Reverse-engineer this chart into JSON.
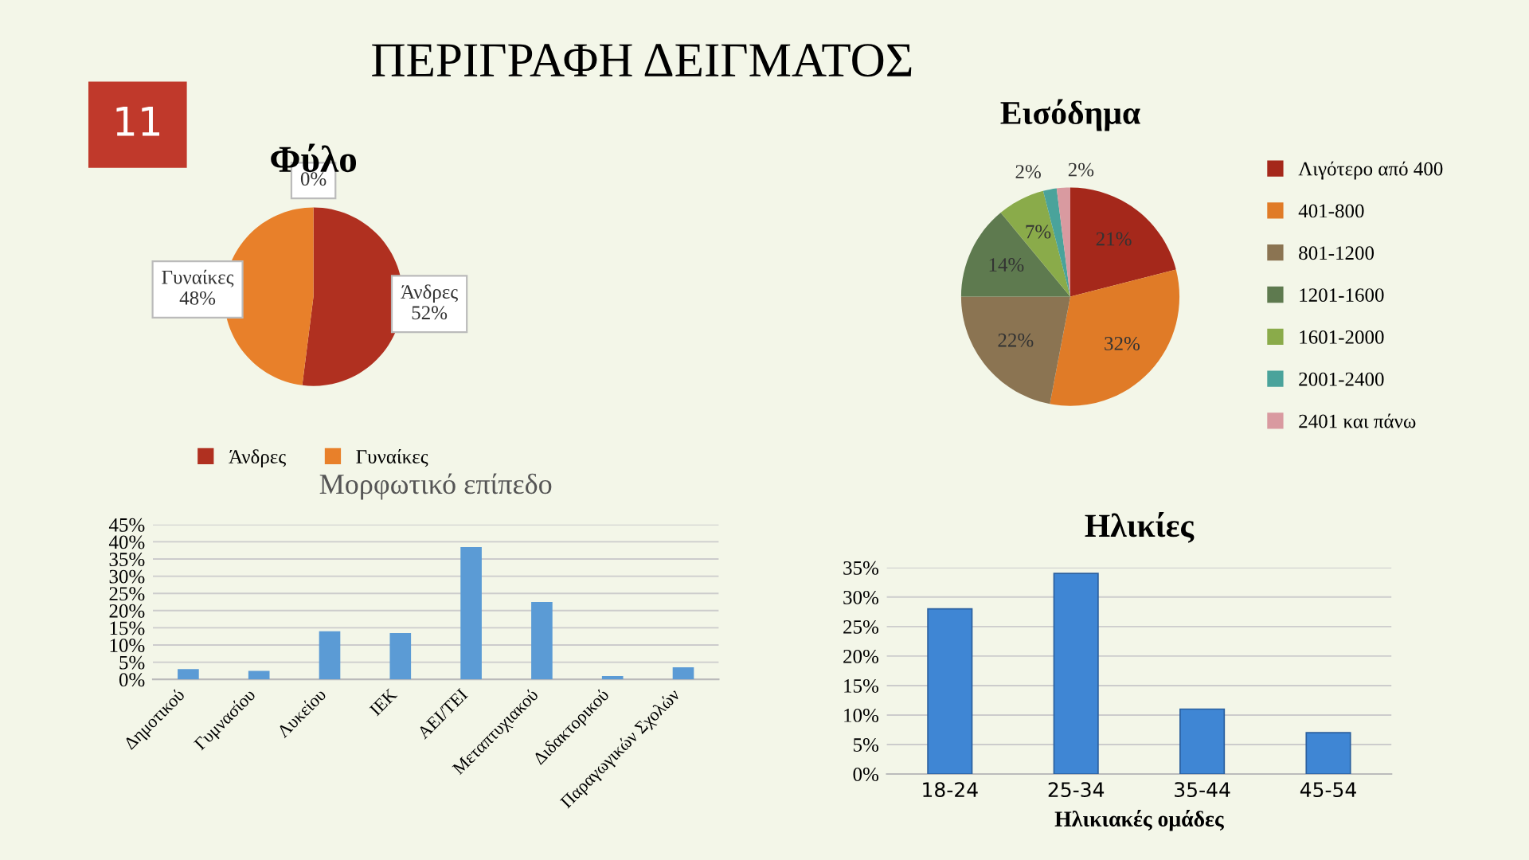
{
  "chart_data": [
    {
      "type": "pie",
      "title": "Φύλο",
      "categories": [
        "Άνδρες",
        "Γυναίκες",
        null
      ],
      "values": [
        52,
        48,
        0
      ],
      "colors": [
        "#b03020",
        "#e8802a",
        "#8b7452"
      ],
      "value_labels": [
        "Άνδρες\n52%",
        "Γυναίκες\n48%",
        "0%"
      ],
      "legend": "bottom",
      "annotations": [
        "ΠΕΡΙΓΡΑΦΗ ΔΕΙΓΜΑΤΟΣ",
        "11"
      ]
    },
    {
      "type": "pie",
      "title": "Εισόδημα",
      "categories": [
        "Λιγότερο από 400",
        "401-800",
        "801-1200",
        "1201-1600",
        "1601-2000",
        "2001-2400",
        "2401 και πάνω"
      ],
      "values": [
        21,
        32,
        22,
        14,
        7,
        2,
        2
      ],
      "colors": [
        "#a5281b",
        "#e07b27",
        "#8b7452",
        "#5e7a4f",
        "#8aab4a",
        "#4aa39b",
        "#d99aa0"
      ],
      "value_labels": [
        "21%",
        "32%",
        "22%",
        "14%",
        "7%",
        "2%",
        "2%"
      ],
      "legend": "right"
    },
    {
      "type": "bar",
      "title": "Μορφωτικό επίπεδο",
      "categories": [
        "Δημοτικού",
        "Γυμνασίου",
        "Λυκείου",
        "ΙΕΚ",
        "ΑΕΙ/ΤΕΙ",
        "Μεταπτυχιακού",
        "Διδακτορικού",
        "Παραγωγικών Σχολών"
      ],
      "values": [
        3,
        2.5,
        14,
        13.5,
        38.5,
        22.5,
        1,
        3.5
      ],
      "color": "#5b9bd5",
      "ylim": [
        0,
        45
      ],
      "yticks": [
        {
          "value": 0,
          "label": "0%"
        },
        {
          "value": 5,
          "label": "5%"
        },
        {
          "value": 10,
          "label": "10%"
        },
        {
          "value": 15,
          "label": "15%"
        },
        {
          "value": 20,
          "label": "20%"
        },
        {
          "value": 25,
          "label": "25%"
        },
        {
          "value": 30,
          "label": "30%"
        },
        {
          "value": 35,
          "label": "35%"
        },
        {
          "value": 40,
          "label": "40%"
        },
        {
          "value": 45,
          "label": "45%"
        }
      ],
      "grid": "y"
    },
    {
      "type": "bar",
      "title": "Ηλικίες",
      "xlabel": "Ηλικιακές ομάδες",
      "categories": [
        "18-24",
        "25-34",
        "35-44",
        "45-54"
      ],
      "values": [
        28,
        34,
        11,
        7
      ],
      "color": "#3f86d4",
      "ylim": [
        0,
        35
      ],
      "yticks": [
        {
          "value": 0,
          "label": "0%"
        },
        {
          "value": 5,
          "label": "5%"
        },
        {
          "value": 10,
          "label": "10%"
        },
        {
          "value": 15,
          "label": "15%"
        },
        {
          "value": 20,
          "label": "20%"
        },
        {
          "value": 25,
          "label": "25%"
        },
        {
          "value": 30,
          "label": "30%"
        },
        {
          "value": 35,
          "label": "35%"
        }
      ],
      "grid": "y"
    }
  ]
}
